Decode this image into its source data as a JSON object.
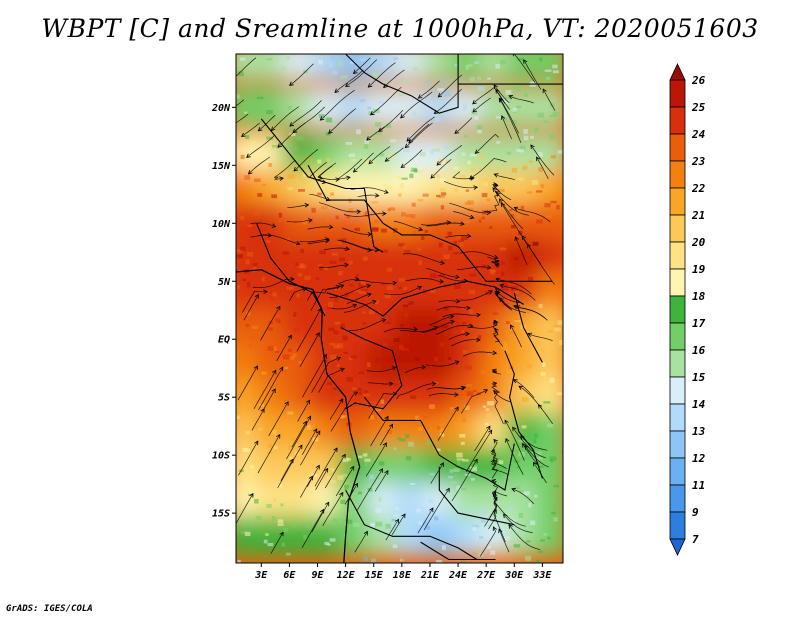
{
  "title": "WBPT [C] and Sreamline at 1000hPa, VT: 2020051603",
  "credit": "GrADS: IGES/COLA",
  "chart_data": {
    "type": "heatmap",
    "variable": "WBPT",
    "units": "C",
    "level": "1000hPa",
    "valid_time": "2020051603",
    "x_ticks": [
      "3E",
      "6E",
      "9E",
      "12E",
      "15E",
      "18E",
      "21E",
      "24E",
      "27E",
      "30E",
      "33E"
    ],
    "x_tick_values": [
      3,
      6,
      9,
      12,
      15,
      18,
      21,
      24,
      27,
      30,
      33
    ],
    "y_ticks": [
      "20N",
      "15N",
      "10N",
      "5N",
      "EQ",
      "5S",
      "10S",
      "15S"
    ],
    "y_tick_values": [
      20,
      15,
      10,
      5,
      0,
      -5,
      -10,
      -15
    ],
    "xlim": [
      0.3,
      35.2
    ],
    "ylim": [
      -19.3,
      24.6
    ],
    "colorbar": {
      "labels": [
        "7",
        "9",
        "11",
        "12",
        "13",
        "14",
        "15",
        "16",
        "17",
        "18",
        "19",
        "20",
        "21",
        "22",
        "23",
        "24",
        "25",
        "26"
      ],
      "colors": [
        "#2164d6",
        "#2e7ee0",
        "#4a98ea",
        "#6bb0f2",
        "#8dc6f6",
        "#b0dbfa",
        "#d8eff8",
        "#a8e2a0",
        "#72cf68",
        "#3eb43c",
        "#fef5b0",
        "#fde384",
        "#fcc85a",
        "#f9a626",
        "#f38010",
        "#e95d0c",
        "#d8300c",
        "#bb1606",
        "#9c0a04"
      ]
    },
    "field_grid": {
      "lat": [
        24,
        20,
        16,
        13,
        10,
        7,
        4,
        1,
        -2,
        -5,
        -8,
        -11,
        -14,
        -17
      ],
      "lon": [
        1,
        4,
        7,
        10,
        13,
        16,
        19,
        22,
        25,
        28,
        31,
        34
      ],
      "values": [
        [
          15,
          15,
          14,
          13,
          12,
          13,
          14,
          15,
          16,
          15,
          16,
          16
        ],
        [
          16,
          16,
          15,
          14,
          13,
          14,
          14,
          13,
          14,
          15,
          15,
          15
        ],
        [
          18,
          18,
          17,
          16,
          15,
          15,
          14,
          14,
          15,
          15,
          15,
          15
        ],
        [
          22,
          21,
          20,
          19,
          18,
          18,
          18,
          19,
          19,
          20,
          20,
          21
        ],
        [
          24,
          24,
          23,
          23,
          23,
          22,
          22,
          23,
          23,
          23,
          23,
          23
        ],
        [
          24,
          24,
          24,
          24,
          24,
          24,
          24,
          24,
          24,
          24,
          25,
          24
        ],
        [
          24,
          24,
          24,
          24,
          24,
          24,
          24,
          24,
          24,
          24,
          24,
          22
        ],
        [
          23,
          23,
          24,
          24,
          24,
          24,
          25,
          25,
          24,
          23,
          21,
          20
        ],
        [
          22,
          23,
          23,
          24,
          24,
          25,
          25,
          25,
          24,
          22,
          21,
          20
        ],
        [
          21,
          22,
          23,
          24,
          24,
          24,
          24,
          24,
          23,
          22,
          20,
          19
        ],
        [
          20,
          21,
          21,
          22,
          23,
          22,
          22,
          22,
          21,
          19,
          17,
          16
        ],
        [
          19,
          20,
          20,
          20,
          17,
          16,
          16,
          17,
          17,
          17,
          16,
          16
        ],
        [
          18,
          19,
          19,
          18,
          16,
          14,
          13,
          14,
          15,
          15,
          15,
          16
        ],
        [
          17,
          17,
          17,
          17,
          16,
          15,
          13,
          12,
          13,
          14,
          15,
          16
        ]
      ]
    },
    "overlay": "streamlines (1000hPa wind) and country boundaries",
    "grid": false,
    "colorbar_position": "right"
  }
}
